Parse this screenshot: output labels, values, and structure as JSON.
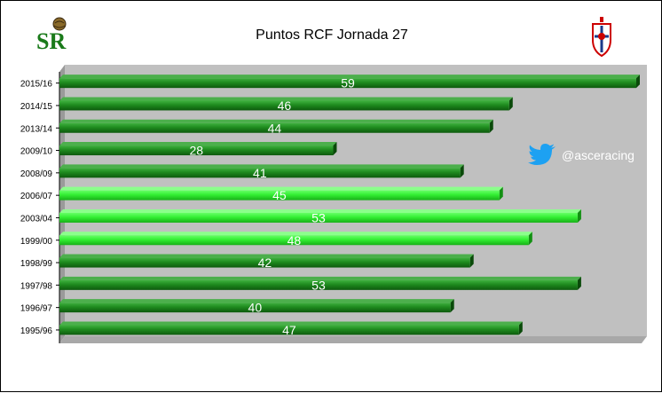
{
  "chart_data": {
    "type": "bar",
    "orientation": "horizontal",
    "title": "Puntos RCF Jornada 27",
    "categories": [
      "2015/16",
      "2014/15",
      "2013/14",
      "2009/10",
      "2008/09",
      "2006/07",
      "2003/04",
      "1999/00",
      "1998/99",
      "1997/98",
      "1996/97",
      "1995/96"
    ],
    "values": [
      59,
      46,
      44,
      28,
      41,
      45,
      53,
      48,
      42,
      53,
      40,
      47
    ],
    "highlight": [
      false,
      false,
      false,
      false,
      false,
      true,
      true,
      true,
      false,
      false,
      false,
      false
    ],
    "xlim": [
      0,
      60
    ],
    "grid": false,
    "bar_color": "#1f8a1f",
    "highlight_color": "#33ff33",
    "plot_background": "#c0c0c0"
  },
  "header": {
    "logo_left_text": "SR",
    "twitter_handle": "@asceracing"
  },
  "icons": {
    "left_logo": "sr-club-logo",
    "right_logo": "racing-ferrol-crest-icon",
    "social": "twitter-bird-icon"
  }
}
